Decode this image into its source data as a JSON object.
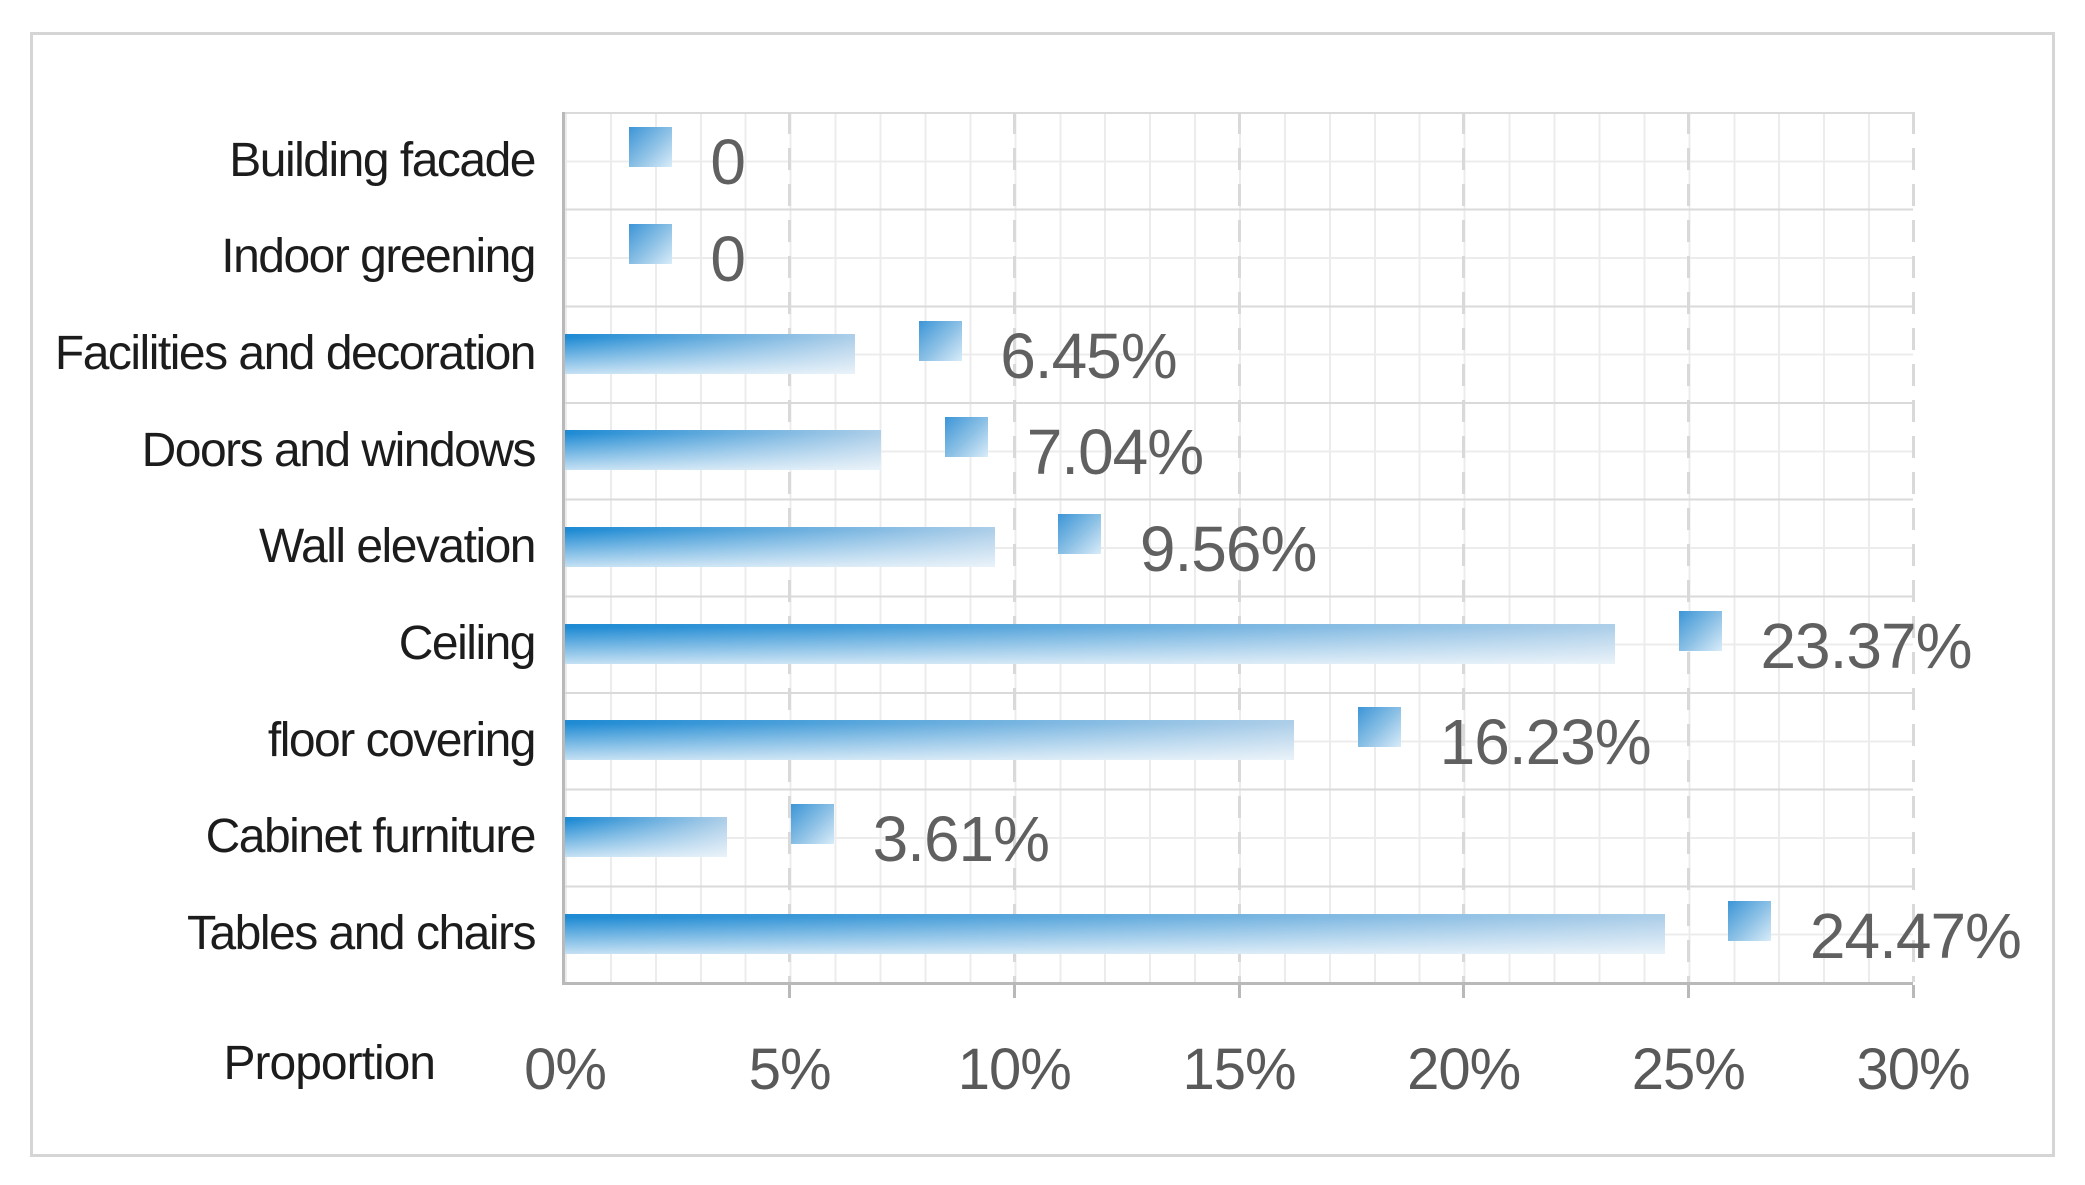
{
  "chart_data": {
    "type": "bar",
    "orientation": "horizontal",
    "title": "",
    "xlabel": "Proportion",
    "ylabel": "",
    "categories": [
      "Building facade",
      "Indoor greening",
      "Facilities and decoration",
      "Doors and windows",
      "Wall elevation",
      "Ceiling",
      "floor covering",
      "Cabinet furniture",
      "Tables and chairs"
    ],
    "values": [
      0,
      0,
      6.45,
      7.04,
      9.56,
      23.37,
      16.23,
      3.61,
      24.47
    ],
    "data_labels": [
      "0",
      "0",
      "6.45%",
      "7.04%",
      "9.56%",
      "23.37%",
      "16.23%",
      "3.61%",
      "24.47%"
    ],
    "x_ticks": [
      "0%",
      "5%",
      "10%",
      "15%",
      "20%",
      "25%",
      "30%"
    ],
    "x_tick_values": [
      0,
      5,
      10,
      15,
      20,
      25,
      30
    ],
    "xlim": [
      0,
      30
    ],
    "grid": "minor vertical every 1%, dashed major vertical every 5%, horizontal lines at row boundaries and row centers",
    "legend": "none",
    "marker_offset_pct": 1.9
  },
  "colors": {
    "bar_gradient_start": "#1d8ad3",
    "bar_gradient_end": "#aecfe9",
    "marker_gradient_start": "#3c95d7",
    "marker_gradient_end": "#d9ecf9",
    "data_label_gray": "#606060",
    "tick_label_gray": "#595959",
    "category_text": "#1c1c1c",
    "grid_minor": "#ececec",
    "grid_major": "#dadada",
    "grid_dashed": "#d9d9d9",
    "axis_border": "#b9b9b9",
    "outer_frame": "#d5d5d5",
    "background": "#ffffff"
  }
}
